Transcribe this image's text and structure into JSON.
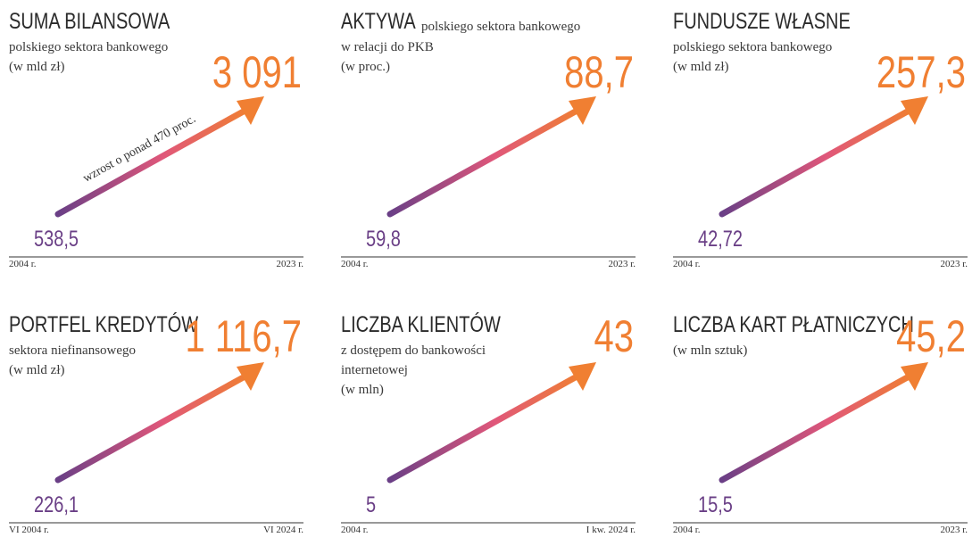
{
  "panels": [
    {
      "title": "SUMA BILANSOWA",
      "subtitle": [
        "polskiego sektora bankowego",
        "(w mld zł)"
      ],
      "end_value": "3 091",
      "start_value": "538,5",
      "start_label": "2004 r.",
      "end_label": "2023 r.",
      "annotation": "wzrost o ponad 470 proc."
    },
    {
      "title": "AKTYWA",
      "subtitle": [
        "polskiego sektora bankowego",
        "w relacji do PKB",
        "(w proc.)"
      ],
      "end_value": "88,7",
      "start_value": "59,8",
      "start_label": "2004 r.",
      "end_label": "2023 r."
    },
    {
      "title": "FUNDUSZE WŁASNE",
      "subtitle": [
        "polskiego sektora bankowego",
        "(w mld zł)"
      ],
      "end_value": "257,3",
      "start_value": "42,72",
      "start_label": "2004 r.",
      "end_label": "2023 r."
    },
    {
      "title": "PORTFEL KREDYTÓW",
      "subtitle": [
        "sektora niefinansowego",
        "(w mld zł)"
      ],
      "end_value": "1 116,7",
      "start_value": "226,1",
      "start_label": "VI 2004 r.",
      "end_label": "VI 2024 r."
    },
    {
      "title": "LICZBA KLIENTÓW",
      "subtitle": [
        "z dostępem do bankowości",
        "internetowej",
        "(w mln)"
      ],
      "end_value": "43",
      "start_value": "5",
      "start_label": "2004 r.",
      "end_label": "I kw. 2024 r."
    },
    {
      "title": "LICZBA KART PŁATNICZYCH",
      "subtitle": [
        "(w mln sztuk)"
      ],
      "end_value": "45,2",
      "start_value": "15,5",
      "start_label": "2004 r.",
      "end_label": "2023 r."
    }
  ]
}
